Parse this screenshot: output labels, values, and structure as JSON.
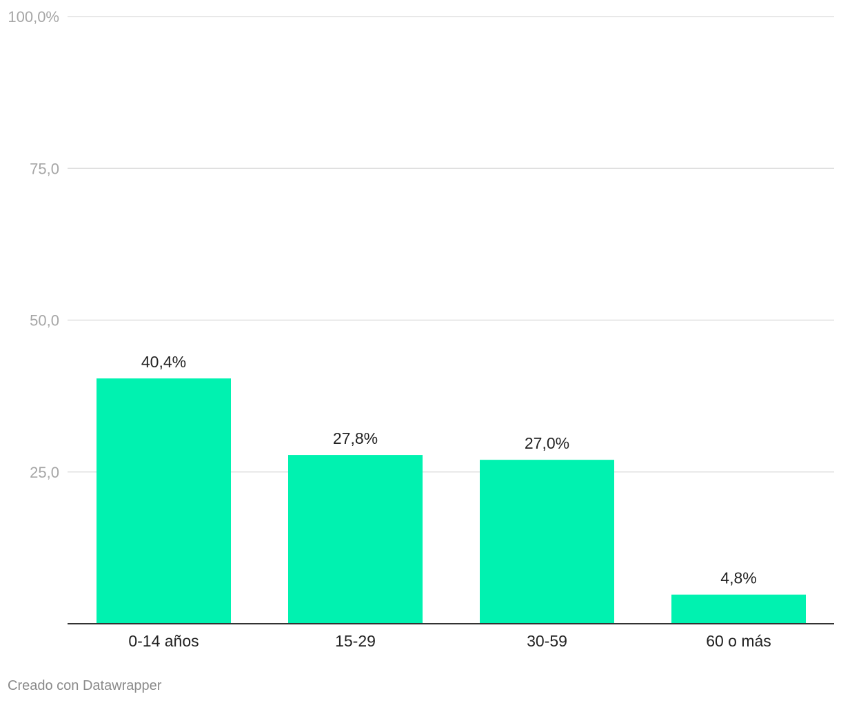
{
  "chart_data": {
    "type": "bar",
    "title": "",
    "xlabel": "",
    "ylabel": "",
    "categories": [
      "0-14 años",
      "15-29",
      "30-59",
      "60 o más"
    ],
    "values": [
      40.4,
      27.8,
      27.0,
      4.8
    ],
    "value_labels": [
      "40,4%",
      "27,8%",
      "27,0%",
      "4,8%"
    ],
    "ylim": [
      0,
      100
    ],
    "y_ticks": [
      100,
      75,
      50,
      25
    ],
    "y_tick_labels": [
      "100,0%",
      "75,0",
      "50,0",
      "25,0"
    ],
    "grid": true,
    "bar_color": "#00f2b0"
  },
  "footer": {
    "credit": "Creado con Datawrapper"
  }
}
